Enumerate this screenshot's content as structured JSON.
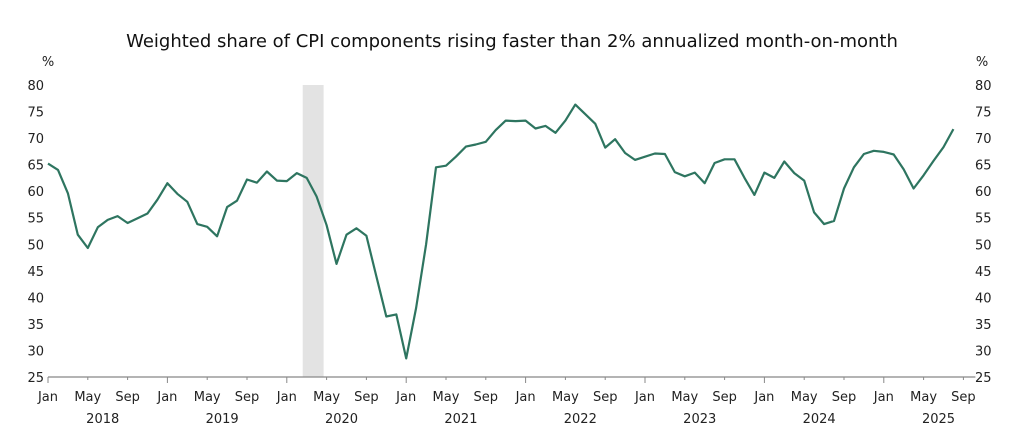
{
  "chart_data": {
    "type": "line",
    "title": "Weighted share of CPI components rising faster than 2% annualized month-on-month",
    "ylabel_left": "%",
    "ylabel_right": "%",
    "ylim": [
      25,
      80
    ],
    "yticks": [
      "25",
      "30",
      "35",
      "40",
      "45",
      "50",
      "55",
      "60",
      "65",
      "70",
      "75",
      "80"
    ],
    "x_start": "Jan 2018",
    "x_month_ticks": [
      "Jan",
      "May",
      "Sep",
      "Jan",
      "May",
      "Sep",
      "Jan",
      "May",
      "Sep",
      "Jan",
      "May",
      "Sep",
      "Jan",
      "May",
      "Sep",
      "Jan",
      "May",
      "Sep",
      "Jan",
      "May",
      "Sep",
      "Jan",
      "May",
      "Sep"
    ],
    "x_year_labels": [
      "2018",
      "2019",
      "2020",
      "2021",
      "2022",
      "2023",
      "2024",
      "2025"
    ],
    "shaded_region": {
      "start": "Mar 2020",
      "end": "Apr 2020",
      "color": "#e3e3e3"
    },
    "line_color": "#2e7560",
    "series": [
      {
        "name": "Weighted share",
        "values": [
          65.2,
          64.0,
          59.6,
          51.8,
          49.3,
          53.2,
          54.6,
          55.3,
          54.0,
          54.9,
          55.8,
          58.4,
          61.5,
          59.5,
          58.0,
          53.8,
          53.3,
          51.5,
          57.0,
          58.2,
          62.2,
          61.6,
          63.7,
          62.0,
          61.9,
          63.4,
          62.5,
          59.0,
          53.6,
          46.3,
          51.8,
          53.0,
          51.6,
          44.0,
          36.4,
          36.8,
          28.5,
          38.0,
          50.0,
          64.5,
          64.8,
          66.5,
          68.4,
          68.8,
          69.3,
          71.5,
          73.3,
          73.2,
          73.3,
          71.8,
          72.3,
          71.0,
          73.3,
          76.3,
          74.5,
          72.7,
          68.2,
          69.8,
          67.2,
          65.9,
          66.5,
          67.1,
          67.0,
          63.6,
          62.8,
          63.5,
          61.5,
          65.3,
          66.0,
          66.0,
          62.5,
          59.3,
          63.5,
          62.5,
          65.6,
          63.4,
          62.0,
          56.0,
          53.8,
          54.4,
          60.5,
          64.5,
          67.0,
          67.6,
          67.4,
          66.9,
          64.1,
          60.5,
          63.0,
          65.7,
          68.3,
          71.7
        ]
      }
    ]
  }
}
